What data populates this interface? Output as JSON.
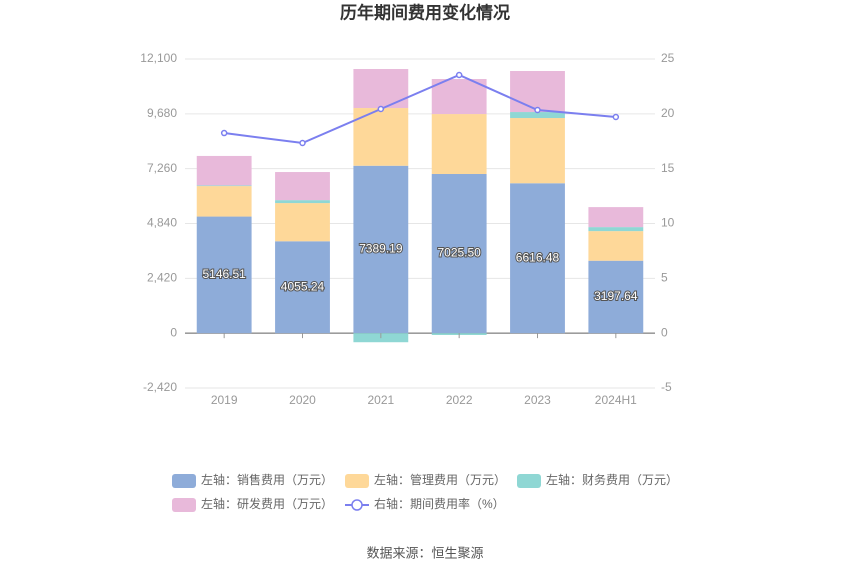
{
  "chart_data": {
    "type": "bar",
    "title": "历年期间费用变化情况",
    "stacked": true,
    "categories": [
      "2019",
      "2020",
      "2021",
      "2022",
      "2023",
      "2024H1"
    ],
    "series": [
      {
        "name": "左轴：销售费用（万元）",
        "color": "#8eacd9",
        "values": [
          5146.51,
          4055.24,
          7389.19,
          7025.5,
          6616.48,
          3197.64
        ],
        "value_labels": [
          "5146.51",
          "4055.24",
          "7389.19",
          "7025.50",
          "6616.48",
          "3197.64"
        ]
      },
      {
        "name": "左轴：管理费用（万元）",
        "color": "#fed899",
        "values": [
          1345,
          1686,
          2547,
          2645,
          2878,
          1306
        ]
      },
      {
        "name": "左轴：财务费用（万元）",
        "color": "#8fd7d4",
        "values": [
          30,
          130,
          -400,
          -80,
          265,
          177
        ]
      },
      {
        "name": "左轴：研发费用（万元）",
        "color": "#e8b9da",
        "values": [
          1300,
          1240,
          1722,
          1546,
          1811,
          883
        ]
      },
      {
        "name": "右轴：期间费用率（%）",
        "type": "line",
        "axis": "y2",
        "color": "#7b7fef",
        "values": [
          18.25,
          17.34,
          20.44,
          23.54,
          20.35,
          19.71
        ]
      }
    ],
    "ylim": [
      -2420,
      12100
    ],
    "yticks": [
      {
        "value": -2420,
        "label": "-2,420"
      },
      0,
      {
        "value": 2420,
        "label": "2,420"
      },
      {
        "value": 4840,
        "label": "4,840"
      },
      {
        "value": 7260,
        "label": "7,260"
      },
      {
        "value": 9680,
        "label": "9,680"
      },
      {
        "value": 12100,
        "label": "12,100"
      }
    ],
    "y2lim": [
      -5,
      25
    ],
    "y2ticks": [
      -5,
      0,
      5,
      10,
      15,
      20,
      25
    ],
    "grid": true,
    "source": "数据来源：恒生聚源"
  }
}
